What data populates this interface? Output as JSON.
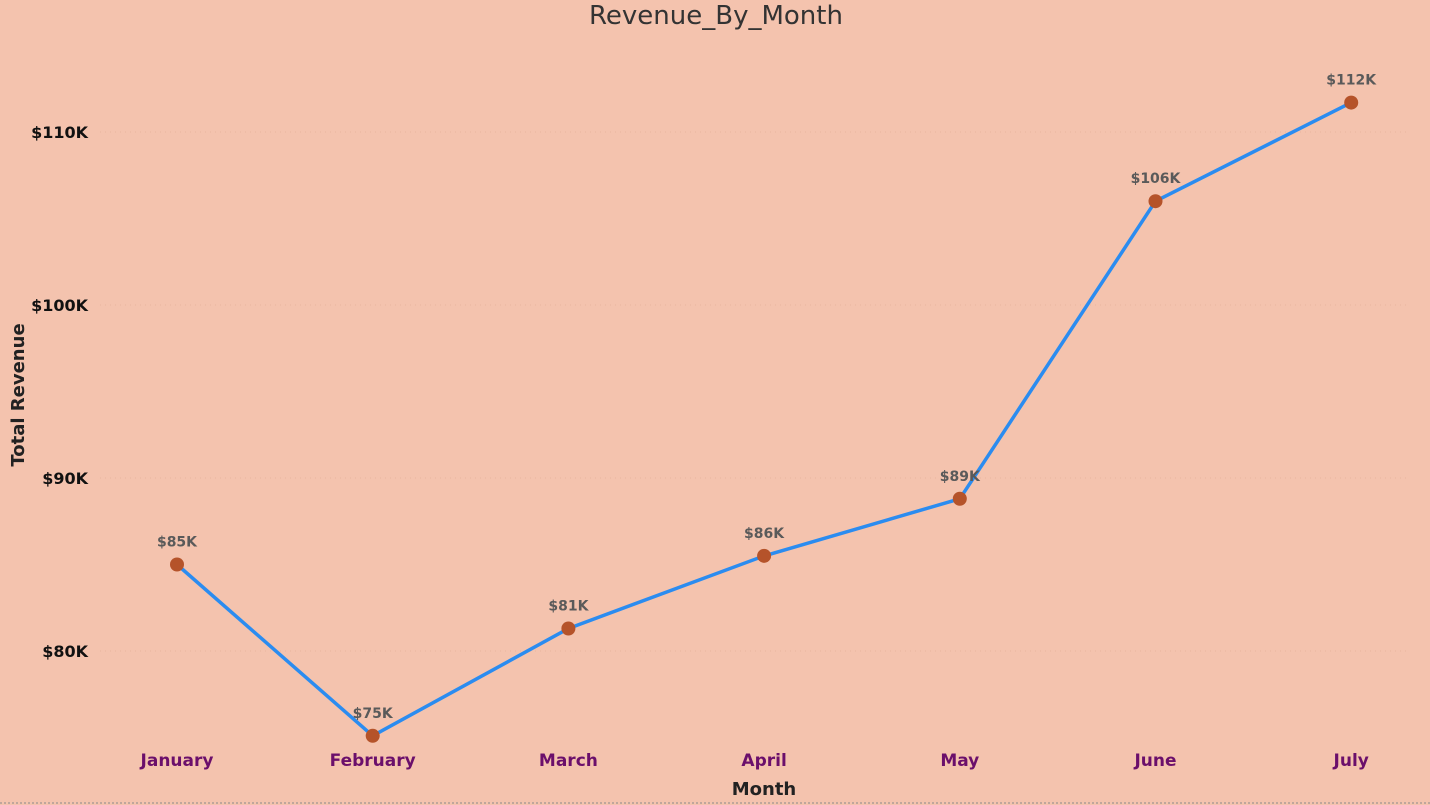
{
  "chart_data": {
    "type": "line",
    "title": "Revenue_By_Month",
    "xlabel": "Month",
    "ylabel": "Total Revenue",
    "categories": [
      "January",
      "February",
      "March",
      "April",
      "May",
      "June",
      "July"
    ],
    "series": [
      {
        "values": [
          85000,
          75100,
          81300,
          85500,
          88800,
          106000,
          111700
        ],
        "data_labels": [
          "$85K",
          "$75K",
          "$81K",
          "$86K",
          "$89K",
          "$106K",
          "$112K"
        ],
        "color": "#2b8cf0",
        "marker_color": "#b5532a"
      }
    ],
    "yticks": [
      80000,
      90000,
      100000,
      110000
    ],
    "ytick_labels": [
      "$80K",
      "$90K",
      "$100K",
      "$110K"
    ],
    "ylim": [
      75100,
      114000
    ],
    "grid": true,
    "legend": "none",
    "colors": {
      "background": "#f4c3ae",
      "x_tick_label": "#6b0f6b",
      "data_label": "#5a5a5a"
    }
  }
}
